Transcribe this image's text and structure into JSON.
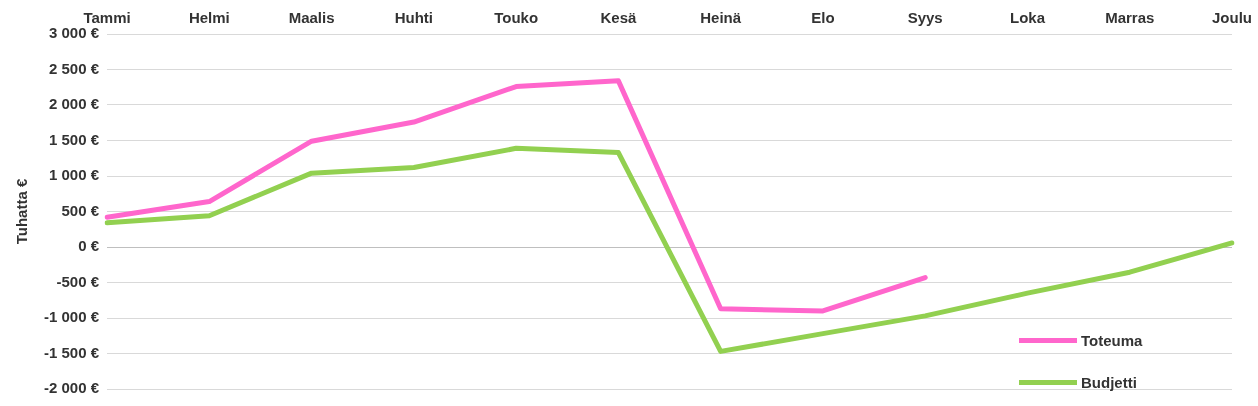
{
  "chart_data": {
    "type": "line",
    "ylabel": "Tuhatta €",
    "categories": [
      "Tammi",
      "Helmi",
      "Maalis",
      "Huhti",
      "Touko",
      "Kesä",
      "Heinä",
      "Elo",
      "Syys",
      "Loka",
      "Marras",
      "Joulu"
    ],
    "series": [
      {
        "name": "Toteuma",
        "color": "#ff66cc",
        "values": [
          420,
          640,
          1490,
          1760,
          2260,
          2340,
          -870,
          -900,
          -430,
          null,
          null,
          null
        ]
      },
      {
        "name": "Budjetti",
        "color": "#92d050",
        "values": [
          340,
          440,
          1040,
          1120,
          1390,
          1330,
          -1470,
          -1220,
          -970,
          -650,
          -355,
          57
        ]
      }
    ],
    "ylim": [
      -2000,
      3000
    ],
    "yticks": [
      {
        "value": -2000,
        "label": "-2 000 €"
      },
      {
        "value": -1500,
        "label": "-1 500 €"
      },
      {
        "value": -1000,
        "label": "-1 000 €"
      },
      {
        "value": -500,
        "label": "-500 €"
      },
      {
        "value": 0,
        "label": "0 €"
      },
      {
        "value": 500,
        "label": "500 €"
      },
      {
        "value": 1000,
        "label": "1 000 €"
      },
      {
        "value": 1500,
        "label": "1 500 €"
      },
      {
        "value": 2000,
        "label": "2 000 €"
      },
      {
        "value": 2500,
        "label": "2 500 €"
      },
      {
        "value": 3000,
        "label": "3 000 €"
      }
    ],
    "grid": "y",
    "legend": "bottom right",
    "marker": "none",
    "line_style": "solid"
  }
}
